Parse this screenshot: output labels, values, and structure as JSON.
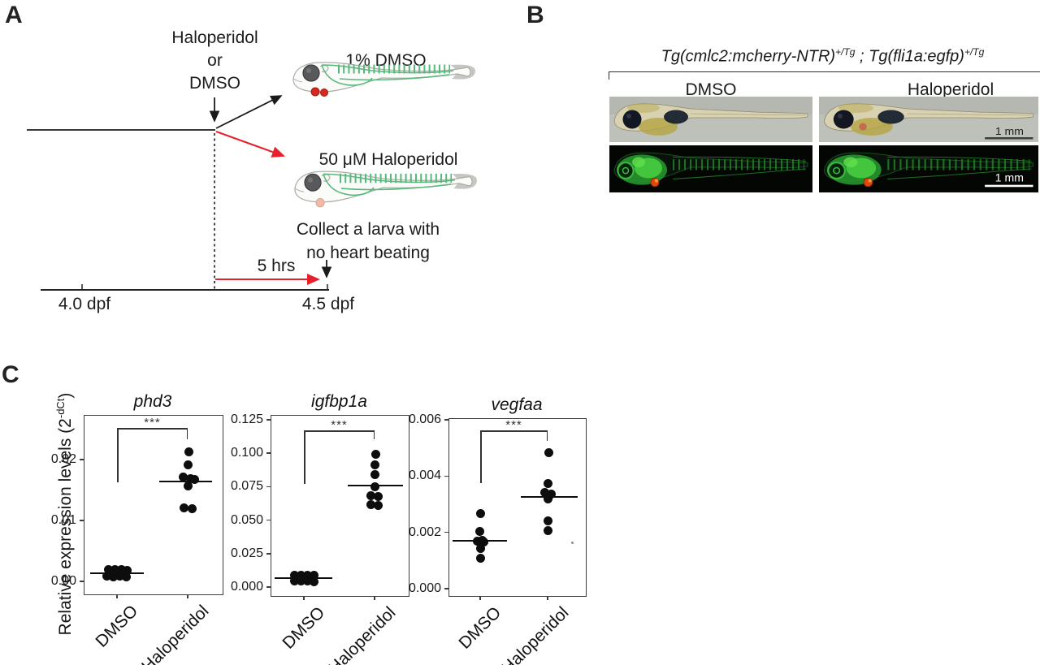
{
  "colors": {
    "red": "#e8202a",
    "ink": "#1a1a1a",
    "green": "#58b87c",
    "heart_red": "#d6281e",
    "heart_pale": "#f2bba8"
  },
  "panelA": {
    "label": "A",
    "drug_line1": "Haloperidol",
    "drug_line2": "or",
    "drug_line3": "DMSO",
    "arm1_label": "1% DMSO",
    "arm2_label": "50 μM Haloperidol",
    "collect_line1": "Collect a larva with",
    "collect_line2": "no heart beating",
    "duration_label": "5 hrs",
    "timeline_start": "4.0 dpf",
    "timeline_end": "4.5 dpf"
  },
  "panelB": {
    "label": "B",
    "genotype": {
      "g1": "Tg(cmlc2:mcherry-NTR)",
      "sup1": "+/Tg",
      "sep": " ; ",
      "g2": "Tg(fli1a:egfp)",
      "sup2": "+/Tg"
    },
    "col_dmso": "DMSO",
    "col_haloperidol": "Haloperidol",
    "scalebar_top": "1 mm",
    "scalebar_bottom": "1 mm"
  },
  "panelC": {
    "label": "C",
    "ylabel_prefix": "Relative expression levels (2",
    "ylabel_sup": "-dCt",
    "ylabel_suffix": ")"
  },
  "chart_data": [
    {
      "type": "scatter",
      "title": "phd3",
      "categories": [
        "DMSO",
        "Haloperidol"
      ],
      "significance": "***",
      "ylim": [
        -0.002,
        0.0272
      ],
      "grid": false,
      "yticks": [
        {
          "value": 0.0,
          "label": "0.00"
        },
        {
          "value": 0.01,
          "label": "0.01"
        },
        {
          "value": 0.02,
          "label": "0.02"
        }
      ],
      "series": [
        {
          "name": "DMSO",
          "median": 0.0013,
          "points": [
            [
              0.0019,
              -11
            ],
            [
              0.002,
              -3
            ],
            [
              0.0019,
              5
            ],
            [
              0.0018,
              12
            ],
            [
              0.0009,
              -13
            ],
            [
              0.0008,
              -5
            ],
            [
              0.0009,
              3
            ],
            [
              0.0008,
              11
            ]
          ]
        },
        {
          "name": "Haloperidol",
          "median": 0.0164,
          "points": [
            [
              0.0213,
              1
            ],
            [
              0.0191,
              0
            ],
            [
              0.0171,
              -6
            ],
            [
              0.0169,
              3
            ],
            [
              0.0168,
              8
            ],
            [
              0.0157,
              0
            ],
            [
              0.0121,
              -5
            ],
            [
              0.012,
              5
            ]
          ]
        }
      ]
    },
    {
      "type": "scatter",
      "title": "igfbp1a",
      "categories": [
        "DMSO",
        "Haloperidol"
      ],
      "significance": "***",
      "ylim": [
        -0.0067,
        0.128
      ],
      "grid": false,
      "yticks": [
        {
          "value": 0.0,
          "label": "0.000"
        },
        {
          "value": 0.025,
          "label": "0.025"
        },
        {
          "value": 0.05,
          "label": "0.050"
        },
        {
          "value": 0.075,
          "label": "0.075"
        },
        {
          "value": 0.1,
          "label": "0.100"
        },
        {
          "value": 0.125,
          "label": "0.125"
        }
      ],
      "series": [
        {
          "name": "DMSO",
          "median": 0.0065,
          "points": [
            [
              0.0088,
              -12
            ],
            [
              0.009,
              -4
            ],
            [
              0.0088,
              4
            ],
            [
              0.0086,
              12
            ],
            [
              0.0048,
              -12
            ],
            [
              0.0044,
              -4
            ],
            [
              0.0046,
              4
            ],
            [
              0.0042,
              12
            ]
          ]
        },
        {
          "name": "Haloperidol",
          "median": 0.0757,
          "points": [
            [
              0.0995,
              1
            ],
            [
              0.0915,
              0
            ],
            [
              0.0838,
              0
            ],
            [
              0.0752,
              0
            ],
            [
              0.0685,
              -5
            ],
            [
              0.0678,
              4
            ],
            [
              0.0618,
              -5
            ],
            [
              0.061,
              4
            ]
          ]
        }
      ]
    },
    {
      "type": "scatter",
      "title": "vegfaa",
      "categories": [
        "DMSO",
        "Haloperidol"
      ],
      "significance": "***",
      "ylim": [
        -0.0003,
        0.00603
      ],
      "grid": false,
      "yticks": [
        {
          "value": 0.0,
          "label": "0.000"
        },
        {
          "value": 0.002,
          "label": "0.002"
        },
        {
          "value": 0.004,
          "label": "0.004"
        },
        {
          "value": 0.006,
          "label": "0.006"
        }
      ],
      "series": [
        {
          "name": "DMSO",
          "median": 0.0017,
          "points": [
            [
              0.00266,
              0
            ],
            [
              0.00204,
              -1
            ],
            [
              0.00172,
              2
            ],
            [
              0.00168,
              -4
            ],
            [
              0.00165,
              4
            ],
            [
              0.00142,
              0
            ],
            [
              0.00108,
              0
            ]
          ]
        },
        {
          "name": "Haloperidol",
          "median": 0.00326,
          "points": [
            [
              0.00482,
              1
            ],
            [
              0.00375,
              0
            ],
            [
              0.00341,
              -4
            ],
            [
              0.00336,
              4
            ],
            [
              0.0032,
              0
            ],
            [
              0.00242,
              0
            ],
            [
              0.00205,
              0
            ]
          ]
        }
      ],
      "artifact": {
        "value": 0.00162,
        "dx": 30
      }
    }
  ]
}
